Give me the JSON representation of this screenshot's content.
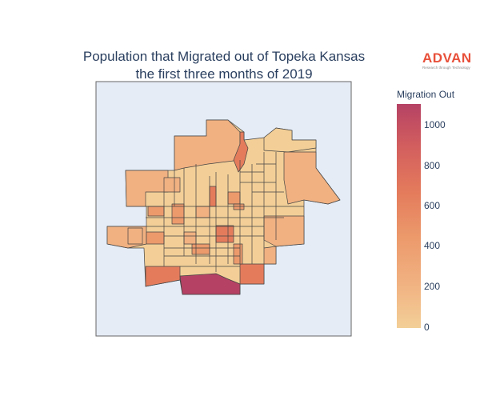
{
  "title": {
    "line1": "Population that Migrated out of Topeka Kansas",
    "line2": "the first three months of 2019"
  },
  "logo": {
    "word": "ADVAN",
    "tagline": "Research through Technology"
  },
  "colorbar": {
    "title": "Migration Out",
    "ticks": [
      "0",
      "200",
      "400",
      "600",
      "800",
      "1000"
    ],
    "scale_min": 0,
    "scale_max": 1100,
    "colors": [
      "#f3cf97",
      "#f1b181",
      "#ec9a6c",
      "#e47c5c",
      "#d4605e",
      "#b54264"
    ]
  },
  "map": {
    "background": "#e5ecf6",
    "border_color": "#444444",
    "land_color": "#f3cf97"
  }
}
